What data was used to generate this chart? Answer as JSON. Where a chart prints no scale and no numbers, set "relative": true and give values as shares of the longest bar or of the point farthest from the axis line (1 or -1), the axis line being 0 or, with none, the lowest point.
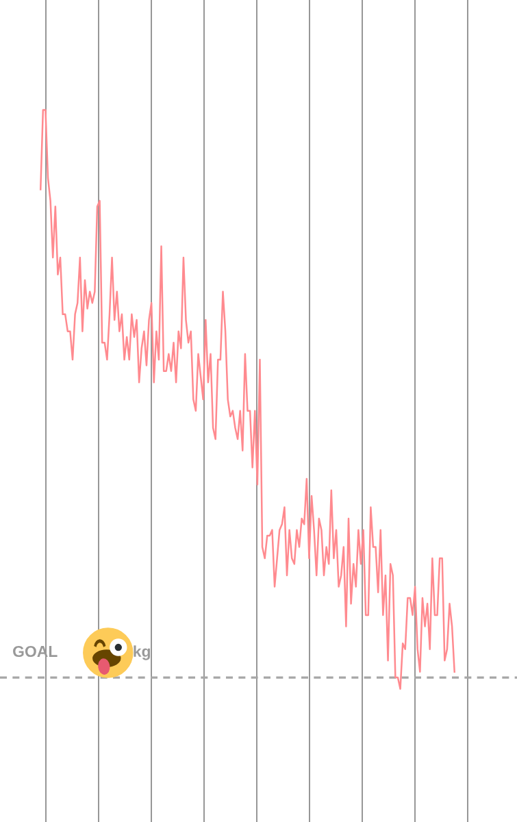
{
  "chart_data": {
    "type": "line",
    "relative": true,
    "categories": [
      null,
      null,
      null,
      null,
      null,
      null,
      null,
      null,
      null,
      null,
      null,
      null,
      null,
      null,
      null,
      null,
      null,
      null,
      null,
      null,
      null,
      null,
      null,
      null,
      null,
      null,
      null,
      null,
      null,
      null,
      null,
      null,
      null,
      null,
      null,
      null,
      null,
      null,
      null,
      null,
      null,
      null,
      null,
      null,
      null,
      null,
      null,
      null,
      null,
      null,
      null,
      null,
      null,
      null,
      null,
      null,
      null,
      null,
      null,
      null,
      null,
      null,
      null,
      null,
      null,
      null,
      null,
      null,
      null,
      null,
      null,
      null,
      null,
      null,
      null,
      null,
      null,
      null,
      null,
      null,
      null,
      null,
      null,
      null,
      null,
      null,
      null,
      null,
      null,
      null,
      null,
      null,
      null,
      null,
      null,
      null,
      null,
      null,
      null,
      null,
      null,
      null,
      null,
      null,
      null,
      null,
      null,
      null,
      null,
      null,
      null,
      null,
      null,
      null,
      null,
      null,
      null,
      null,
      null,
      null,
      null,
      null,
      null,
      null,
      null,
      null,
      null,
      null,
      null,
      null,
      null,
      null,
      null,
      null,
      null,
      null,
      null,
      null,
      null,
      null,
      null,
      null,
      null,
      null,
      null,
      null,
      null,
      null,
      null,
      null,
      null,
      null,
      null,
      null,
      null,
      null,
      null,
      null,
      null,
      null,
      null,
      null,
      null,
      null,
      null,
      null,
      null,
      null,
      null
    ],
    "series": [
      {
        "color": "#ff8a8f",
        "values": [
          0.86,
          1.0,
          1.0,
          0.88,
          0.84,
          0.74,
          0.83,
          0.71,
          0.74,
          0.64,
          0.64,
          0.61,
          0.61,
          0.56,
          0.64,
          0.66,
          0.74,
          0.61,
          0.7,
          0.65,
          0.68,
          0.66,
          0.68,
          0.83,
          0.84,
          0.59,
          0.59,
          0.56,
          0.64,
          0.74,
          0.63,
          0.68,
          0.61,
          0.64,
          0.56,
          0.6,
          0.56,
          0.64,
          0.6,
          0.63,
          0.52,
          0.58,
          0.61,
          0.55,
          0.63,
          0.66,
          0.52,
          0.61,
          0.56,
          0.76,
          0.54,
          0.54,
          0.57,
          0.54,
          0.59,
          0.52,
          0.61,
          0.58,
          0.74,
          0.63,
          0.59,
          0.61,
          0.49,
          0.47,
          0.57,
          0.53,
          0.49,
          0.63,
          0.52,
          0.57,
          0.44,
          0.42,
          0.56,
          0.56,
          0.68,
          0.61,
          0.49,
          0.46,
          0.47,
          0.44,
          0.42,
          0.47,
          0.4,
          0.57,
          0.47,
          0.47,
          0.37,
          0.47,
          0.34,
          0.56,
          0.23,
          0.21,
          0.25,
          0.25,
          0.26,
          0.16,
          0.21,
          0.26,
          0.27,
          0.3,
          0.18,
          0.26,
          0.21,
          0.2,
          0.26,
          0.23,
          0.28,
          0.27,
          0.35,
          0.21,
          0.32,
          0.26,
          0.18,
          0.28,
          0.26,
          0.18,
          0.23,
          0.2,
          0.33,
          0.21,
          0.26,
          0.16,
          0.18,
          0.23,
          0.09,
          0.28,
          0.13,
          0.2,
          0.16,
          0.26,
          0.2,
          0.26,
          0.11,
          0.11,
          0.3,
          0.23,
          0.23,
          0.15,
          0.26,
          0.11,
          0.18,
          0.03,
          0.2,
          0.18,
          0.0,
          0.0,
          -0.02,
          0.06,
          0.05,
          0.14,
          0.14,
          0.11,
          0.16,
          0.05,
          0.01,
          0.14,
          0.09,
          0.13,
          0.05,
          0.21,
          0.11,
          0.11,
          0.21,
          0.21,
          0.03,
          0.05,
          0.13,
          0.09,
          0.01
        ]
      }
    ],
    "ref_lines": [
      {
        "axis": "y",
        "value": 0,
        "label": "GOAL",
        "color": "#a6a6a6",
        "line_style": "dashed"
      }
    ],
    "annotations": [
      "kg"
    ]
  }
}
